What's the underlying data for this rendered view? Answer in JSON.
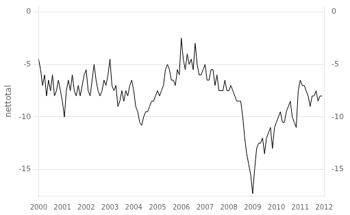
{
  "chart_data": {
    "type": "line",
    "ylabel": "nettotal",
    "color": "#000000",
    "grid": true,
    "xlim": [
      2000.0,
      2012.0
    ],
    "xticks": [
      2000,
      2001,
      2002,
      2003,
      2004,
      2005,
      2006,
      2007,
      2008,
      2009,
      2010,
      2011,
      2012
    ],
    "ylim": [
      -17.5,
      0.5
    ],
    "yticks": [
      0,
      -5,
      -10,
      -15
    ],
    "y2lim": [
      -17.5,
      0.5
    ],
    "y2ticks": [
      0,
      -5,
      -10,
      -15
    ],
    "x": [
      2000.0,
      2000.083,
      2000.167,
      2000.25,
      2000.333,
      2000.417,
      2000.5,
      2000.583,
      2000.667,
      2000.75,
      2000.833,
      2000.917,
      2001.0,
      2001.083,
      2001.167,
      2001.25,
      2001.333,
      2001.417,
      2001.5,
      2001.583,
      2001.667,
      2001.75,
      2001.833,
      2001.917,
      2002.0,
      2002.083,
      2002.167,
      2002.25,
      2002.333,
      2002.417,
      2002.5,
      2002.583,
      2002.667,
      2002.75,
      2002.833,
      2002.917,
      2003.0,
      2003.083,
      2003.167,
      2003.25,
      2003.333,
      2003.417,
      2003.5,
      2003.583,
      2003.667,
      2003.75,
      2003.833,
      2003.917,
      2004.0,
      2004.083,
      2004.167,
      2004.25,
      2004.333,
      2004.417,
      2004.5,
      2004.583,
      2004.667,
      2004.75,
      2004.833,
      2004.917,
      2005.0,
      2005.083,
      2005.167,
      2005.25,
      2005.333,
      2005.417,
      2005.5,
      2005.583,
      2005.667,
      2005.75,
      2005.833,
      2005.917,
      2006.0,
      2006.083,
      2006.167,
      2006.25,
      2006.333,
      2006.417,
      2006.5,
      2006.583,
      2006.667,
      2006.75,
      2006.833,
      2006.917,
      2007.0,
      2007.083,
      2007.167,
      2007.25,
      2007.333,
      2007.417,
      2007.5,
      2007.583,
      2007.667,
      2007.75,
      2007.833,
      2007.917,
      2008.0,
      2008.083,
      2008.167,
      2008.25,
      2008.333,
      2008.417,
      2008.5,
      2008.583,
      2008.667,
      2008.75,
      2008.833,
      2008.917,
      2009.0,
      2009.083,
      2009.167,
      2009.25,
      2009.333,
      2009.417,
      2009.5,
      2009.583,
      2009.667,
      2009.75,
      2009.833,
      2009.917,
      2010.0,
      2010.083,
      2010.167,
      2010.25,
      2010.333,
      2010.417,
      2010.5,
      2010.583,
      2010.667,
      2010.75,
      2010.833,
      2010.917,
      2011.0,
      2011.083,
      2011.167,
      2011.25,
      2011.333,
      2011.417,
      2011.5,
      2011.583,
      2011.667,
      2011.75,
      2011.833,
      2011.917
    ],
    "values": [
      -4.5,
      -5.5,
      -7.0,
      -6.0,
      -8.0,
      -6.5,
      -7.5,
      -6.0,
      -8.0,
      -7.5,
      -6.5,
      -7.5,
      -8.5,
      -10.0,
      -7.5,
      -6.5,
      -7.5,
      -6.0,
      -7.5,
      -8.0,
      -7.0,
      -8.0,
      -7.0,
      -6.0,
      -5.5,
      -7.5,
      -8.0,
      -6.5,
      -5.0,
      -6.5,
      -7.5,
      -8.0,
      -7.5,
      -6.5,
      -7.0,
      -6.0,
      -4.5,
      -7.0,
      -7.5,
      -7.0,
      -9.0,
      -8.5,
      -7.5,
      -8.5,
      -7.5,
      -8.0,
      -7.0,
      -6.5,
      -7.5,
      -9.0,
      -9.5,
      -10.5,
      -10.8,
      -10.0,
      -9.5,
      -9.5,
      -9.0,
      -8.5,
      -8.5,
      -8.0,
      -7.5,
      -8.0,
      -7.5,
      -7.0,
      -5.5,
      -5.0,
      -5.5,
      -6.5,
      -6.5,
      -7.0,
      -5.5,
      -6.0,
      -2.5,
      -4.5,
      -5.5,
      -4.0,
      -5.0,
      -4.5,
      -5.5,
      -3.0,
      -5.0,
      -6.0,
      -6.0,
      -5.5,
      -5.0,
      -6.5,
      -6.5,
      -5.5,
      -5.5,
      -7.0,
      -6.0,
      -7.5,
      -7.5,
      -7.5,
      -6.5,
      -7.5,
      -7.5,
      -7.0,
      -7.5,
      -8.0,
      -8.5,
      -8.5,
      -8.5,
      -10.0,
      -12.0,
      -13.5,
      -14.5,
      -15.5,
      -17.3,
      -15.0,
      -13.0,
      -12.5,
      -12.5,
      -12.0,
      -13.5,
      -12.0,
      -11.5,
      -11.0,
      -13.0,
      -11.0,
      -10.5,
      -10.0,
      -9.5,
      -10.5,
      -10.5,
      -9.5,
      -9.0,
      -8.5,
      -10.0,
      -10.5,
      -11.0,
      -7.5,
      -6.5,
      -7.0,
      -7.0,
      -7.5,
      -8.0,
      -9.0,
      -8.0,
      -8.0,
      -7.5,
      -8.5,
      -8.0,
      -8.0
    ]
  }
}
